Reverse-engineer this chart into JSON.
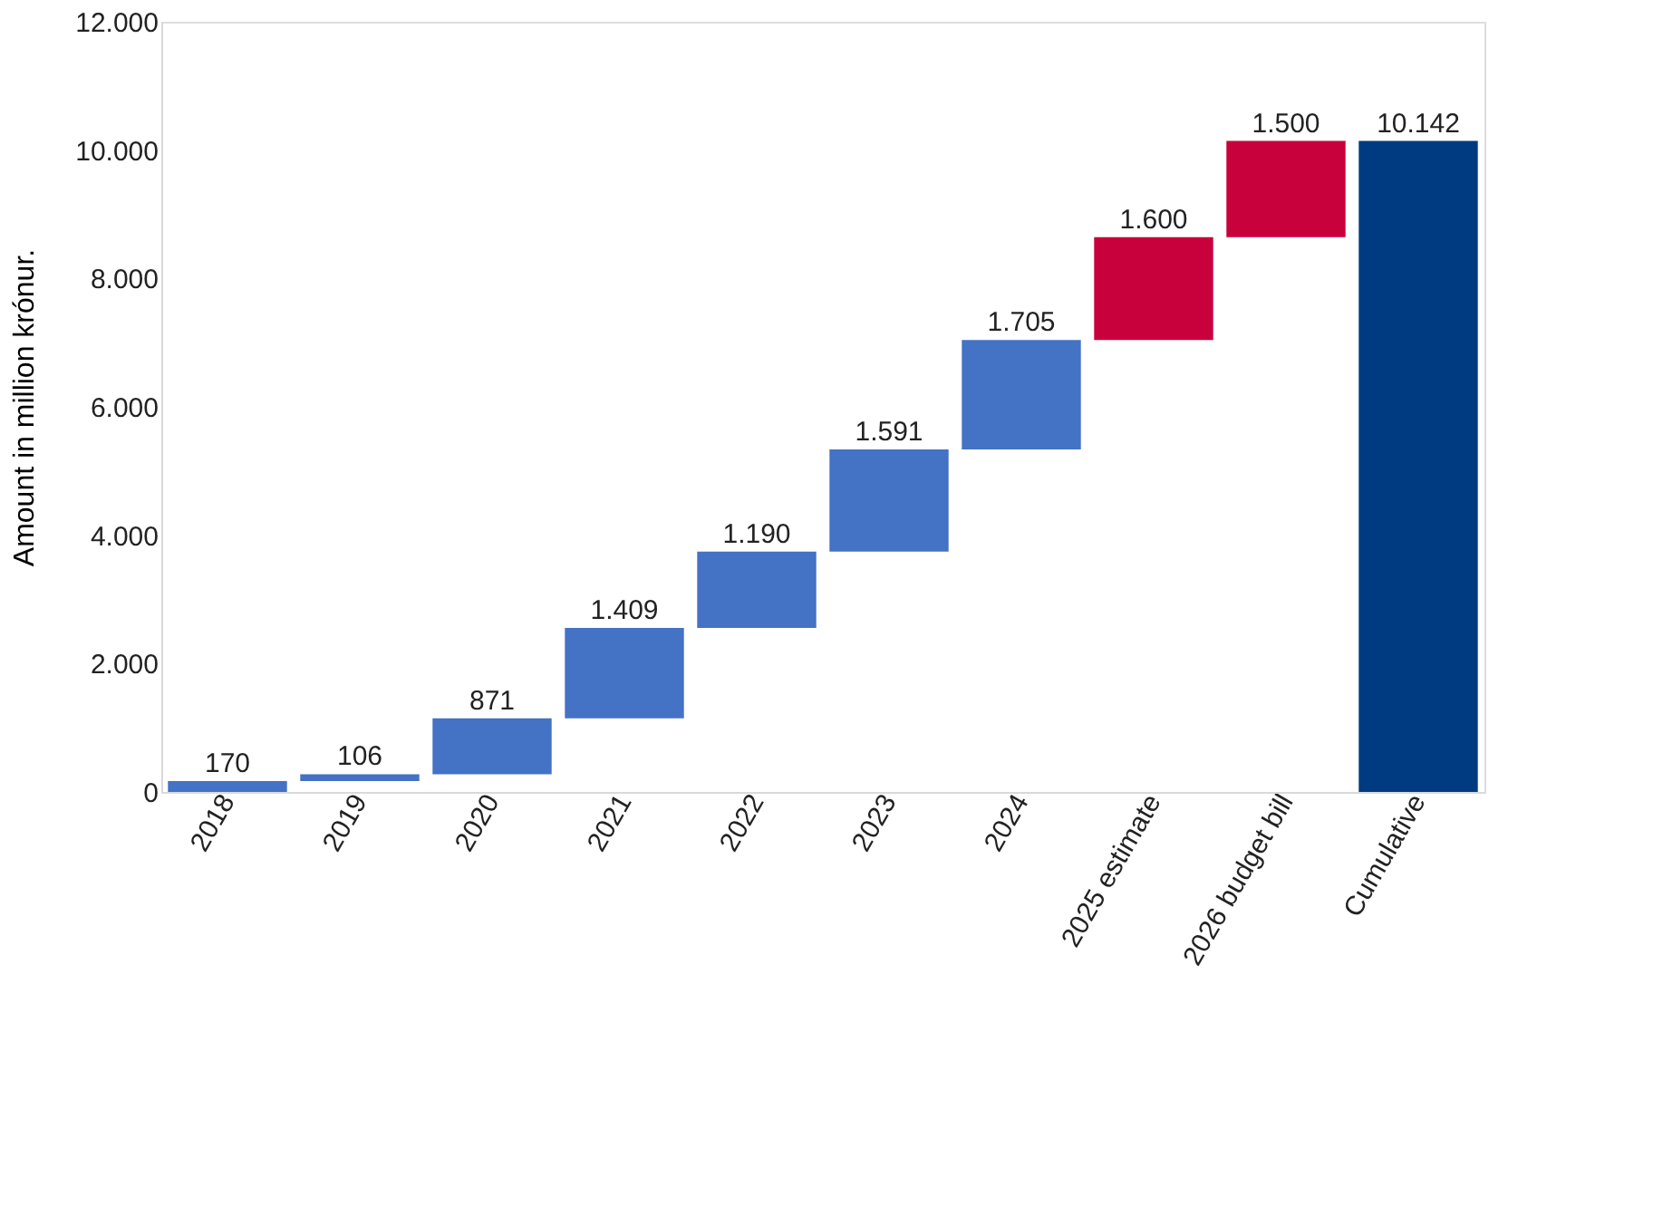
{
  "chart_data": {
    "type": "bar",
    "ylabel": "Amount in million krónur.",
    "categories": [
      "2018",
      "2019",
      "2020",
      "2021",
      "2022",
      "2023",
      "2024",
      "2025 estimate",
      "2026 budget bill",
      "Cumulative"
    ],
    "values": [
      170,
      106,
      871,
      1409,
      1190,
      1591,
      1705,
      1600,
      1500,
      10142
    ],
    "base": [
      0,
      170,
      276,
      1147,
      2556,
      3746,
      5337,
      7042,
      8642,
      0
    ],
    "colors": [
      "#4472c4",
      "#4472c4",
      "#4472c4",
      "#4472c4",
      "#4472c4",
      "#4472c4",
      "#4472c4",
      "#c8003c",
      "#c8003c",
      "#003b82"
    ],
    "value_labels": [
      "170",
      "106",
      "871",
      "1.409",
      "1.190",
      "1.591",
      "1.705",
      "1.600",
      "1.500",
      "10.142"
    ],
    "ylim": [
      0,
      12000
    ],
    "yticks": [
      {
        "value": 0,
        "label": "0"
      },
      {
        "value": 2000,
        "label": "2.000"
      },
      {
        "value": 4000,
        "label": "4.000"
      },
      {
        "value": 6000,
        "label": "6.000"
      },
      {
        "value": 8000,
        "label": "8.000"
      },
      {
        "value": 10000,
        "label": "10.000"
      },
      {
        "value": 12000,
        "label": "12.000"
      }
    ],
    "grid": false
  }
}
